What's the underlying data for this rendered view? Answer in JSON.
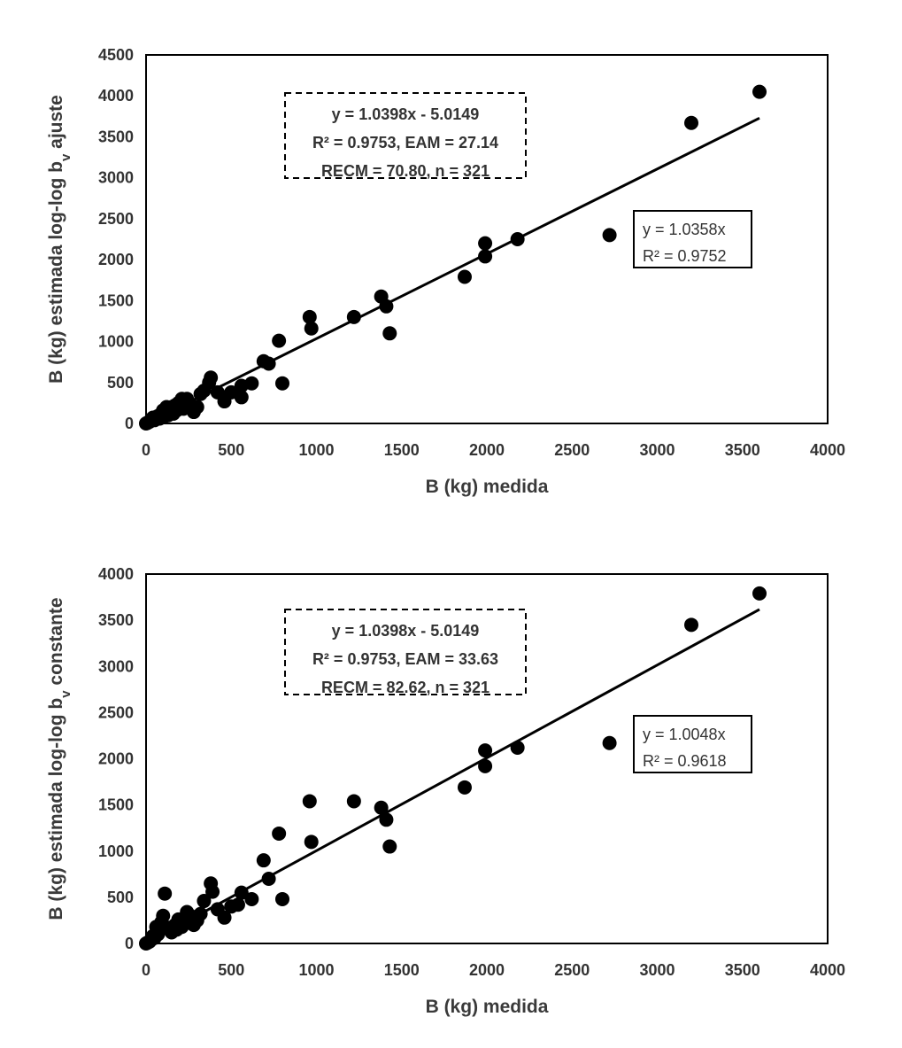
{
  "chart_data": [
    {
      "type": "scatter",
      "xlabel": "B (kg) medida",
      "ylabel": "B (kg) estimada log-log bv ajuste",
      "ylabel_parts": {
        "prefix": "B (kg) estimada log-log b",
        "sub": "v",
        "suffix": " ajuste"
      },
      "xlim": [
        0,
        4000
      ],
      "ylim": [
        0,
        4500
      ],
      "xticks": [
        "0",
        "500",
        "1000",
        "1500",
        "2000",
        "2500",
        "3000",
        "3500",
        "4000"
      ],
      "yticks": [
        "0",
        "500",
        "1000",
        "1500",
        "2000",
        "2500",
        "3000",
        "3500",
        "4000",
        "4500"
      ],
      "grid": false,
      "fit_line": {
        "slope": 1.0358,
        "intercept": 0,
        "x_range": [
          0,
          3600
        ]
      },
      "annotation_box": [
        "y = 1.0398x - 5.0149",
        "R² = 0.9753, EAM = 27.14",
        "RECM = 70.80, n = 321"
      ],
      "trend_box": [
        "y = 1.0358x",
        "R² = 0.9752"
      ],
      "points": [
        [
          3600,
          4050
        ],
        [
          3200,
          3670
        ],
        [
          2720,
          2300
        ],
        [
          2180,
          2250
        ],
        [
          1990,
          2200
        ],
        [
          1990,
          2040
        ],
        [
          1870,
          1790
        ],
        [
          1380,
          1550
        ],
        [
          1410,
          1430
        ],
        [
          1430,
          1100
        ],
        [
          1220,
          1300
        ],
        [
          960,
          1300
        ],
        [
          970,
          1160
        ],
        [
          780,
          1010
        ],
        [
          690,
          760
        ],
        [
          720,
          730
        ],
        [
          800,
          490
        ],
        [
          620,
          490
        ],
        [
          560,
          460
        ],
        [
          560,
          320
        ],
        [
          460,
          270
        ],
        [
          500,
          380
        ],
        [
          420,
          380
        ],
        [
          380,
          560
        ],
        [
          370,
          500
        ],
        [
          340,
          400
        ],
        [
          320,
          360
        ],
        [
          300,
          200
        ],
        [
          280,
          140
        ],
        [
          260,
          230
        ],
        [
          240,
          300
        ],
        [
          230,
          240
        ],
        [
          220,
          180
        ],
        [
          210,
          300
        ],
        [
          190,
          250
        ],
        [
          180,
          160
        ],
        [
          170,
          220
        ],
        [
          160,
          120
        ],
        [
          150,
          200
        ],
        [
          140,
          170
        ],
        [
          130,
          100
        ],
        [
          120,
          200
        ],
        [
          110,
          90
        ],
        [
          100,
          160
        ],
        [
          90,
          120
        ],
        [
          80,
          60
        ],
        [
          70,
          90
        ],
        [
          60,
          80
        ],
        [
          50,
          40
        ],
        [
          40,
          70
        ],
        [
          30,
          50
        ],
        [
          20,
          20
        ],
        [
          10,
          10
        ],
        [
          5,
          5
        ],
        [
          0,
          0
        ]
      ]
    },
    {
      "type": "scatter",
      "xlabel": "B (kg) medida",
      "ylabel": "B (kg) estimada log-log bv constante",
      "ylabel_parts": {
        "prefix": "B (kg) estimada log-log b",
        "sub": "v",
        "suffix": " constante"
      },
      "xlim": [
        0,
        4000
      ],
      "ylim": [
        0,
        4000
      ],
      "xticks": [
        "0",
        "500",
        "1000",
        "1500",
        "2000",
        "2500",
        "3000",
        "3500",
        "4000"
      ],
      "yticks": [
        "0",
        "500",
        "1000",
        "1500",
        "2000",
        "2500",
        "3000",
        "3500",
        "4000"
      ],
      "grid": false,
      "fit_line": {
        "slope": 1.0048,
        "intercept": 0,
        "x_range": [
          0,
          3600
        ]
      },
      "annotation_box": [
        "y = 1.0398x - 5.0149",
        "R² = 0.9753, EAM = 33.63",
        "RECM = 82.62, n = 321"
      ],
      "trend_box": [
        "y = 1.0048x",
        "R² = 0.9618"
      ],
      "points": [
        [
          3600,
          3790
        ],
        [
          3200,
          3450
        ],
        [
          2720,
          2170
        ],
        [
          2180,
          2120
        ],
        [
          1990,
          2090
        ],
        [
          1990,
          1920
        ],
        [
          1870,
          1690
        ],
        [
          1220,
          1540
        ],
        [
          960,
          1540
        ],
        [
          1380,
          1470
        ],
        [
          1410,
          1340
        ],
        [
          1430,
          1050
        ],
        [
          780,
          1190
        ],
        [
          970,
          1100
        ],
        [
          690,
          900
        ],
        [
          720,
          700
        ],
        [
          800,
          480
        ],
        [
          620,
          480
        ],
        [
          560,
          550
        ],
        [
          540,
          420
        ],
        [
          460,
          280
        ],
        [
          500,
          400
        ],
        [
          420,
          370
        ],
        [
          380,
          650
        ],
        [
          390,
          560
        ],
        [
          340,
          460
        ],
        [
          320,
          320
        ],
        [
          300,
          250
        ],
        [
          280,
          200
        ],
        [
          260,
          300
        ],
        [
          240,
          340
        ],
        [
          230,
          220
        ],
        [
          210,
          180
        ],
        [
          190,
          260
        ],
        [
          180,
          150
        ],
        [
          170,
          200
        ],
        [
          150,
          120
        ],
        [
          130,
          170
        ],
        [
          110,
          540
        ],
        [
          100,
          300
        ],
        [
          90,
          230
        ],
        [
          80,
          150
        ],
        [
          70,
          100
        ],
        [
          60,
          180
        ],
        [
          50,
          60
        ],
        [
          40,
          80
        ],
        [
          30,
          40
        ],
        [
          20,
          20
        ],
        [
          10,
          10
        ],
        [
          5,
          5
        ],
        [
          0,
          0
        ]
      ]
    }
  ]
}
